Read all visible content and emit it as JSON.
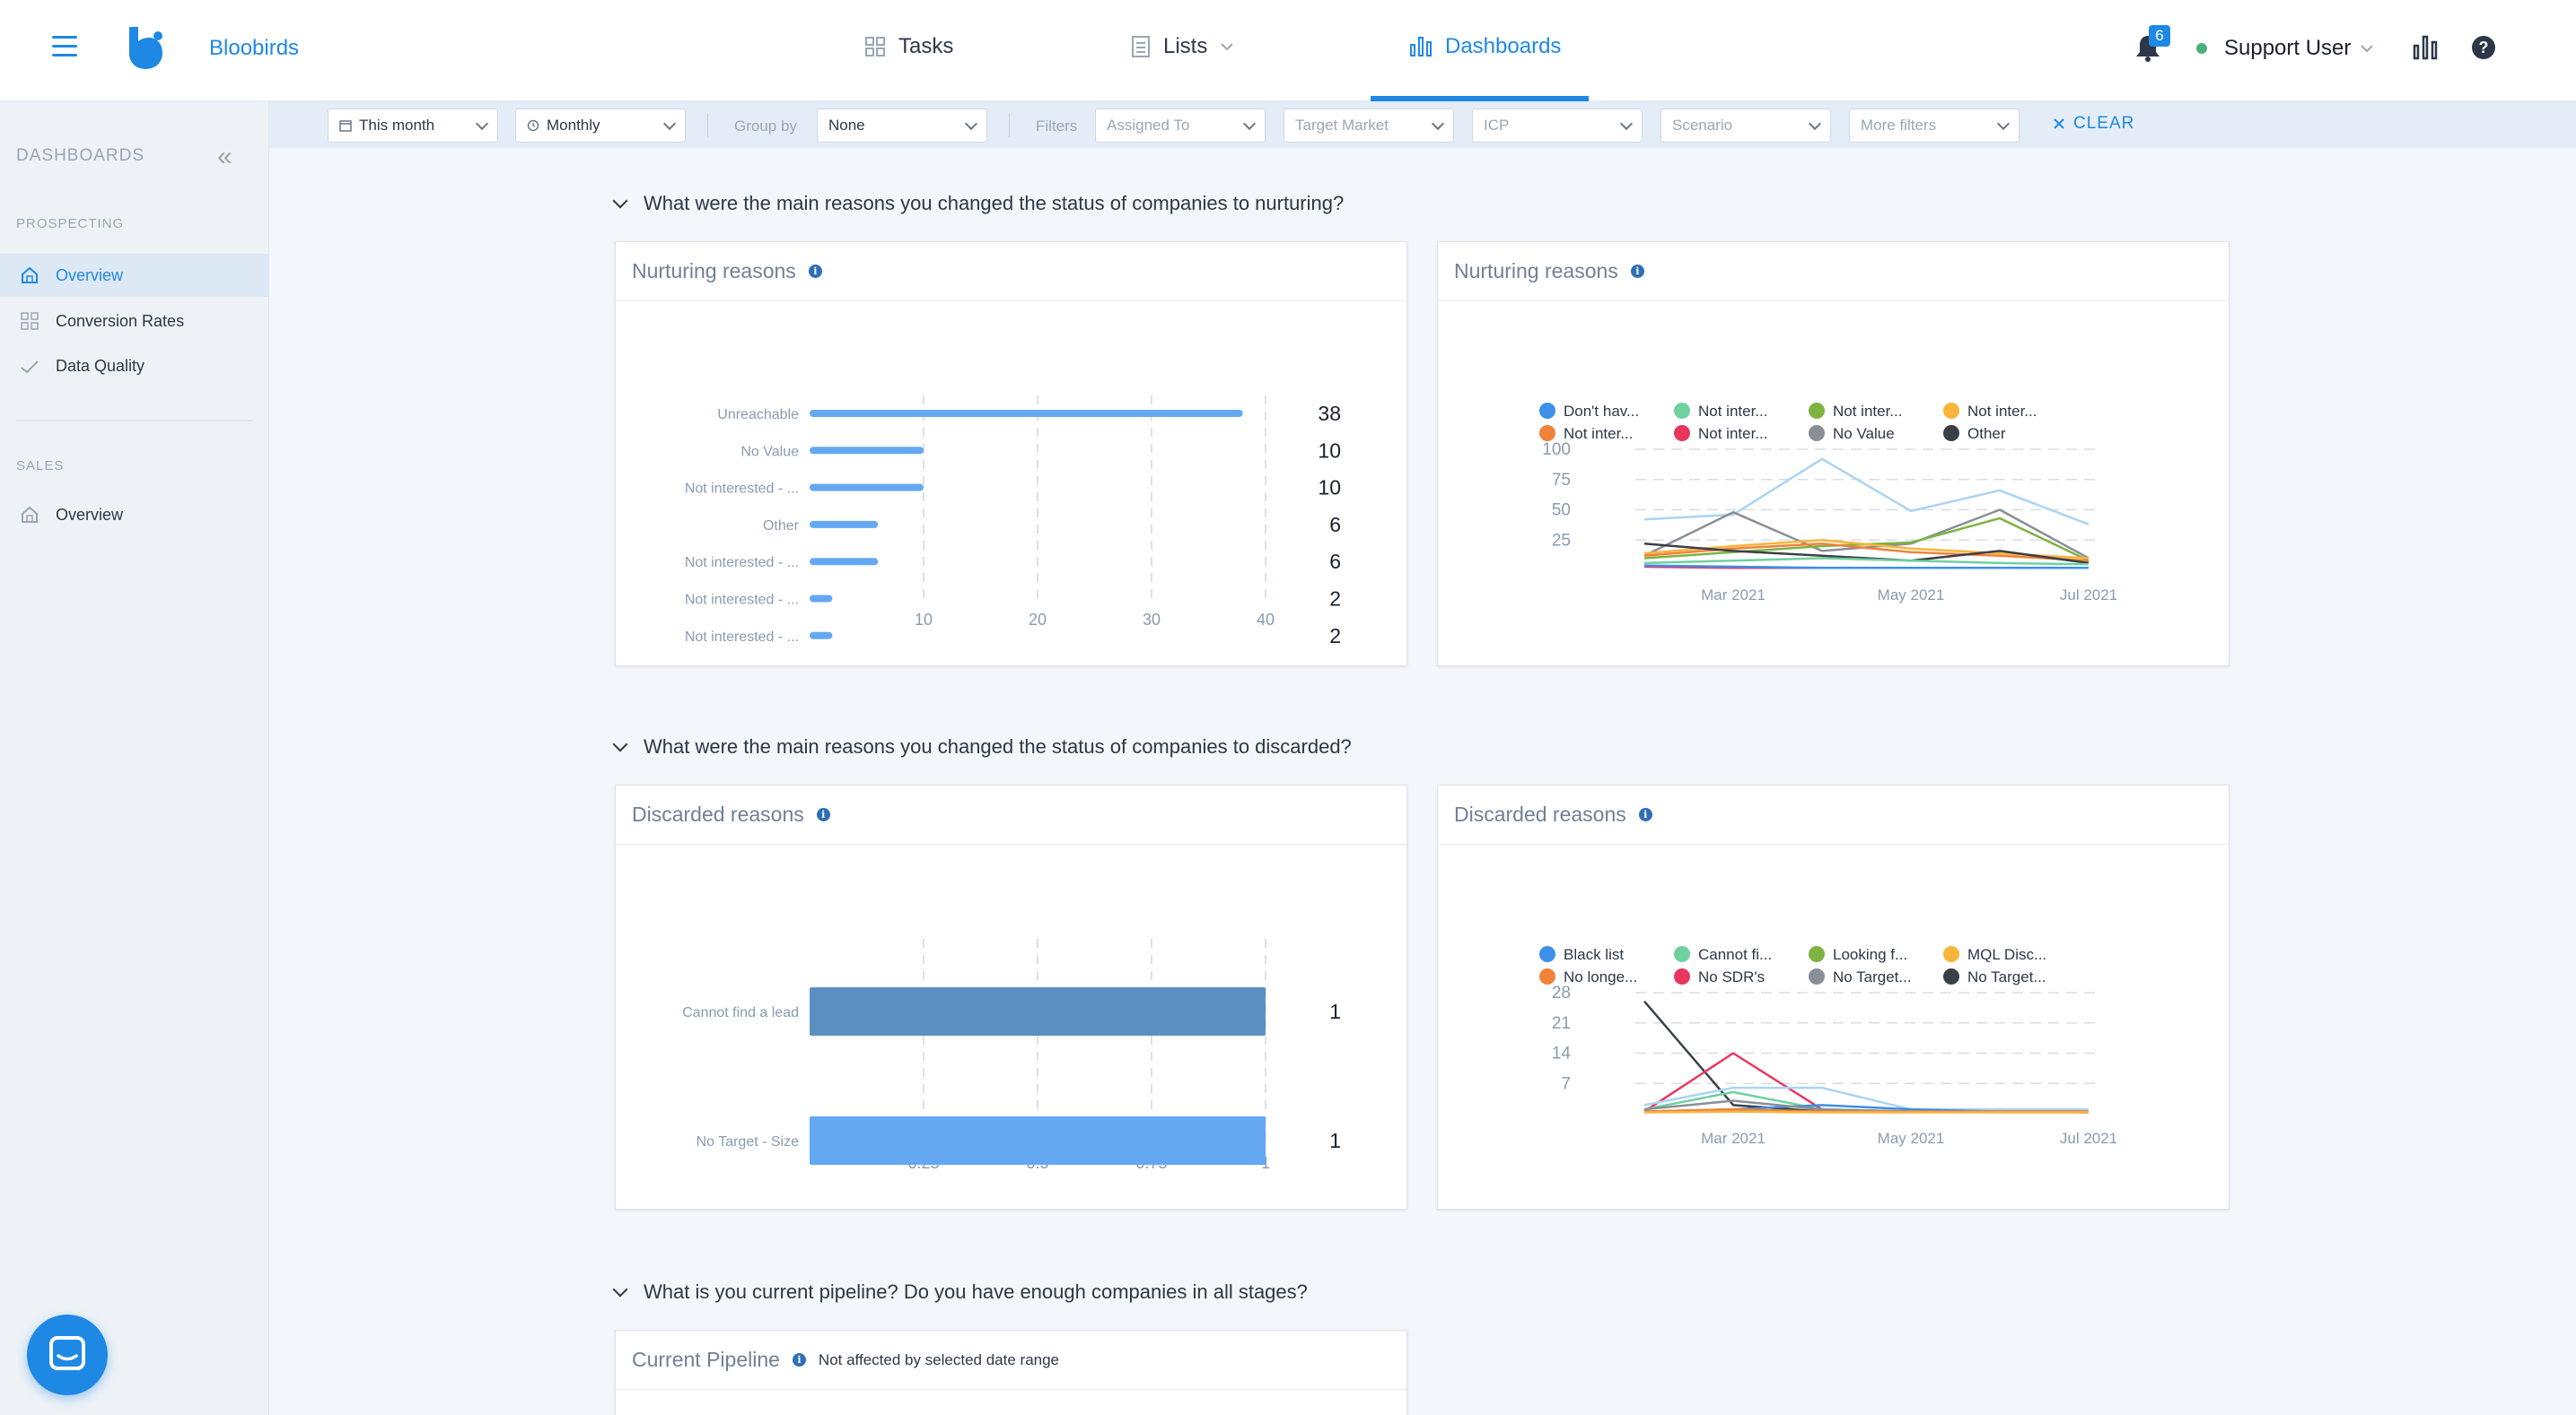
{
  "app": {
    "brand": "Bloobirds"
  },
  "nav": {
    "tasks": "Tasks",
    "lists": "Lists",
    "dashboards": "Dashboards"
  },
  "header": {
    "notification_count": "6",
    "user_name": "Support User"
  },
  "filters": {
    "date_range": "This month",
    "period": "Monthly",
    "group_by_label": "Group by",
    "group_by_value": "None",
    "filters_label": "Filters",
    "assigned_to": "Assigned To",
    "target_market": "Target Market",
    "icp": "ICP",
    "scenario": "Scenario",
    "more_filters": "More filters",
    "clear": "CLEAR"
  },
  "sidebar": {
    "title": "DASHBOARDS",
    "sections": [
      {
        "label": "PROSPECTING",
        "items": [
          {
            "label": "Overview",
            "icon": "home-icon",
            "active": true
          },
          {
            "label": "Conversion Rates",
            "icon": "grid-icon",
            "active": false
          },
          {
            "label": "Data Quality",
            "icon": "check-icon",
            "active": false
          }
        ]
      },
      {
        "label": "SALES",
        "items": [
          {
            "label": "Overview",
            "icon": "home-icon",
            "active": false
          }
        ]
      }
    ]
  },
  "questions": {
    "q1": "What were the main reasons you changed the status of companies to nurturing?",
    "q2": "What were the main reasons you changed the status of companies to discarded?",
    "q3": "What is you current pipeline? Do you have enough companies in all stages?"
  },
  "cards": {
    "nurturing_bar_title": "Nurturing reasons",
    "nurturing_line_title": "Nurturing reasons",
    "discarded_bar_title": "Discarded reasons",
    "discarded_line_title": "Discarded reasons",
    "pipeline_title": "Current Pipeline",
    "pipeline_note": "Not affected by selected date range"
  },
  "colors": {
    "accent": "#1e88e5",
    "bar_light": "#64a8f2",
    "bar_dark": "#5d90c2"
  },
  "chart_data": [
    {
      "id": "nurturing_bar",
      "type": "bar",
      "orientation": "horizontal",
      "categories": [
        "Unreachable",
        "No Value",
        "Not interested - ...",
        "Other",
        "Not interested - ...",
        "Not interested - ...",
        "Not interested - ..."
      ],
      "values": [
        38,
        10,
        10,
        6,
        6,
        2,
        2
      ],
      "xticks": [
        "10",
        "20",
        "30",
        "40"
      ],
      "xlim": [
        0,
        40
      ]
    },
    {
      "id": "nurturing_line",
      "type": "line",
      "legend": [
        "Don't hav...",
        "Not inter...",
        "Not inter...",
        "Not inter...",
        "Not inter...",
        "Not inter...",
        "No Value",
        "Other"
      ],
      "legend_colors": [
        "#3d8fe8",
        "#6fd0a0",
        "#7cb341",
        "#f9b43a",
        "#f0823a",
        "#e8365d",
        "#8a8f96",
        "#3b4047"
      ],
      "yticks": [
        "100",
        "75",
        "50",
        "25"
      ],
      "xticks": [
        "Mar 2021",
        "May 2021",
        "Jul 2021"
      ],
      "ylim": [
        0,
        100
      ],
      "series": [
        {
          "color": "#a9d4f5",
          "values": [
            42,
            46,
            92,
            49,
            66,
            38
          ]
        },
        {
          "color": "#8a8f96",
          "values": [
            12,
            48,
            16,
            22,
            50,
            10
          ]
        },
        {
          "color": "#7cb341",
          "values": [
            10,
            15,
            20,
            23,
            43,
            8
          ]
        },
        {
          "color": "#f9b43a",
          "values": [
            14,
            20,
            25,
            18,
            14,
            10
          ]
        },
        {
          "color": "#f0823a",
          "values": [
            12,
            18,
            22,
            15,
            12,
            8
          ]
        },
        {
          "color": "#3b4047",
          "values": [
            22,
            16,
            12,
            8,
            16,
            6
          ]
        },
        {
          "color": "#6fd0a0",
          "values": [
            6,
            8,
            10,
            8,
            6,
            5
          ]
        },
        {
          "color": "#e8365d",
          "values": [
            3,
            2,
            2,
            2,
            2,
            2
          ]
        },
        {
          "color": "#3d8fe8",
          "values": [
            4,
            3,
            2,
            2,
            2,
            2
          ]
        }
      ]
    },
    {
      "id": "discarded_bar",
      "type": "bar",
      "orientation": "horizontal",
      "categories": [
        "Cannot find a lead",
        "No Target - Size"
      ],
      "values": [
        1,
        1
      ],
      "colors": [
        "#5d90c2",
        "#64a8f2"
      ],
      "xticks": [
        "0.25",
        "0.5",
        "0.75",
        "1"
      ],
      "xlim": [
        0,
        1
      ]
    },
    {
      "id": "discarded_line",
      "type": "line",
      "legend": [
        "Black list",
        "Cannot fi...",
        "Looking f...",
        "MQL Disc...",
        "No longe...",
        "No SDR's",
        "No Target...",
        "No Target..."
      ],
      "legend_colors": [
        "#3d8fe8",
        "#6fd0a0",
        "#7cb341",
        "#f9b43a",
        "#f0823a",
        "#e8365d",
        "#8a8f96",
        "#3b4047"
      ],
      "yticks": [
        "28",
        "21",
        "14",
        "7"
      ],
      "xticks": [
        "Mar 2021",
        "May 2021",
        "Jul 2021"
      ],
      "ylim": [
        0,
        28
      ],
      "series": [
        {
          "color": "#3b4047",
          "values": [
            26,
            2,
            0.5,
            0.5,
            0.5,
            0.3
          ]
        },
        {
          "color": "#e8365d",
          "values": [
            0.5,
            14,
            1,
            0.5,
            1,
            0.5
          ]
        },
        {
          "color": "#a9d4f5",
          "values": [
            2,
            6,
            6,
            1,
            1,
            1
          ]
        },
        {
          "color": "#6fd0a0",
          "values": [
            1,
            5,
            1,
            0.5,
            0.5,
            0.5
          ]
        },
        {
          "color": "#3d8fe8",
          "values": [
            0.5,
            1,
            2,
            1,
            0.5,
            0.5
          ]
        },
        {
          "color": "#8a8f96",
          "values": [
            1,
            3,
            1,
            0.5,
            0.5,
            0.5
          ]
        },
        {
          "color": "#f0823a",
          "values": [
            0.5,
            1,
            0.5,
            0.5,
            0.5,
            0.5
          ]
        },
        {
          "color": "#f9b43a",
          "values": [
            0.3,
            0.5,
            0.3,
            0.3,
            0.3,
            0.3
          ]
        }
      ]
    }
  ]
}
